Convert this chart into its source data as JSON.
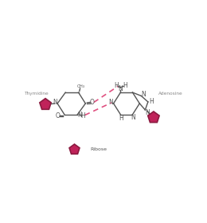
{
  "bg_color": "#ffffff",
  "line_color": "#555555",
  "hbond_color": "#e05080",
  "ribose_color": "#c0235a",
  "ribose_edge": "#8b1a40",
  "text_color": "#555555",
  "label_thymidine": "Thymidine",
  "label_adenosine": "Adenosine",
  "label_ribose": "Ribose",
  "figsize": [
    2.6,
    2.8
  ],
  "dpi": 100
}
